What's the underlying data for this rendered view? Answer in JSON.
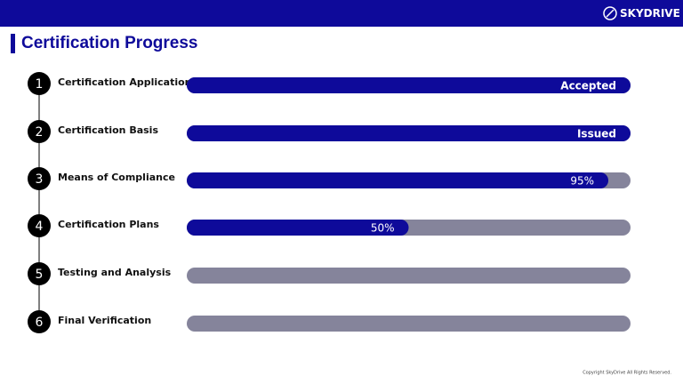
{
  "header": {
    "logo": "SKYDRIVE"
  },
  "title": "Certification Progress",
  "steps": [
    {
      "number": 1,
      "label": "Certification Application",
      "status": "Accepted"
    },
    {
      "number": 2,
      "label": "Certification Basis",
      "status": "Issued"
    },
    {
      "number": 3,
      "label": "Means of Compliance",
      "progress": 95,
      "progress_label": "95%"
    },
    {
      "number": 4,
      "label": "Certification Plans",
      "progress": 50,
      "progress_label": "50%"
    },
    {
      "number": 5,
      "label": "Testing and Analysis"
    },
    {
      "number": 6,
      "label": "Final Verification"
    }
  ],
  "footer": "Copyright SkyDrive All Rights Reserved."
}
